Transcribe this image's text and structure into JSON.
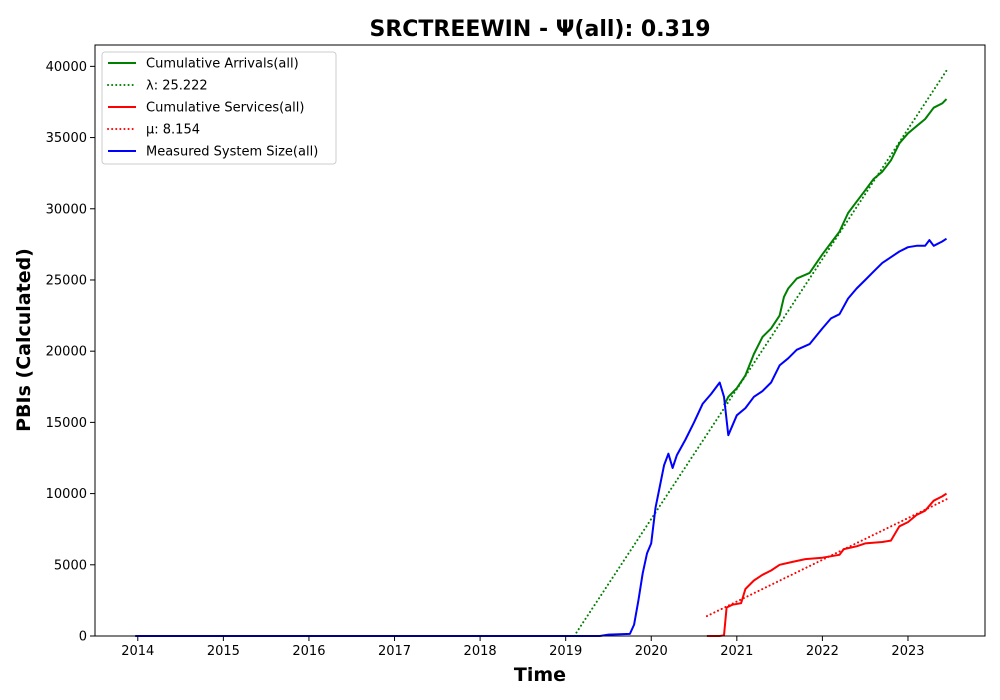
{
  "chart_data": {
    "type": "line",
    "title": "SRCTREEWIN -  Ψ(all): 0.319",
    "xlabel": "Time",
    "ylabel": "PBIs (Calculated)",
    "xlim": [
      2013.5,
      2023.9
    ],
    "ylim": [
      0,
      41500
    ],
    "x_ticks": [
      "2014",
      "2015",
      "2016",
      "2017",
      "2018",
      "2019",
      "2020",
      "2021",
      "2022",
      "2023"
    ],
    "y_ticks": [
      "0",
      "5000",
      "10000",
      "15000",
      "20000",
      "25000",
      "30000",
      "35000",
      "40000"
    ],
    "grid": false,
    "legend_position": "top-left",
    "series": [
      {
        "name": "Cumulative Arrivals(all)",
        "color": "#008000",
        "style": "solid",
        "points": [
          [
            2020.85,
            16200
          ],
          [
            2020.9,
            16800
          ],
          [
            2021.0,
            17400
          ],
          [
            2021.1,
            18300
          ],
          [
            2021.2,
            19800
          ],
          [
            2021.3,
            21000
          ],
          [
            2021.4,
            21600
          ],
          [
            2021.5,
            22500
          ],
          [
            2021.55,
            23800
          ],
          [
            2021.6,
            24400
          ],
          [
            2021.7,
            25100
          ],
          [
            2021.85,
            25500
          ],
          [
            2022.0,
            26800
          ],
          [
            2022.1,
            27600
          ],
          [
            2022.2,
            28400
          ],
          [
            2022.3,
            29700
          ],
          [
            2022.4,
            30500
          ],
          [
            2022.5,
            31300
          ],
          [
            2022.6,
            32100
          ],
          [
            2022.7,
            32600
          ],
          [
            2022.8,
            33400
          ],
          [
            2022.9,
            34600
          ],
          [
            2023.0,
            35300
          ],
          [
            2023.1,
            35800
          ],
          [
            2023.2,
            36300
          ],
          [
            2023.3,
            37100
          ],
          [
            2023.4,
            37400
          ],
          [
            2023.45,
            37700
          ]
        ]
      },
      {
        "name": "λ: 25.222",
        "color": "#008000",
        "style": "dotted",
        "points": [
          [
            2019.1,
            0
          ],
          [
            2023.45,
            39700
          ]
        ]
      },
      {
        "name": "Cumulative Services(all)",
        "color": "#ff0000",
        "style": "solid",
        "points": [
          [
            2020.65,
            0
          ],
          [
            2020.8,
            0
          ],
          [
            2020.85,
            50
          ],
          [
            2020.88,
            2000
          ],
          [
            2020.95,
            2200
          ],
          [
            2021.05,
            2300
          ],
          [
            2021.1,
            3300
          ],
          [
            2021.2,
            3900
          ],
          [
            2021.3,
            4300
          ],
          [
            2021.4,
            4600
          ],
          [
            2021.5,
            5000
          ],
          [
            2021.65,
            5200
          ],
          [
            2021.8,
            5400
          ],
          [
            2022.0,
            5500
          ],
          [
            2022.2,
            5700
          ],
          [
            2022.25,
            6100
          ],
          [
            2022.4,
            6300
          ],
          [
            2022.5,
            6500
          ],
          [
            2022.7,
            6600
          ],
          [
            2022.8,
            6700
          ],
          [
            2022.9,
            7700
          ],
          [
            2023.0,
            8000
          ],
          [
            2023.1,
            8500
          ],
          [
            2023.2,
            8800
          ],
          [
            2023.3,
            9500
          ],
          [
            2023.4,
            9800
          ],
          [
            2023.45,
            10000
          ]
        ]
      },
      {
        "name": "μ: 8.154",
        "color": "#ff0000",
        "style": "dotted",
        "points": [
          [
            2020.65,
            1400
          ],
          [
            2023.45,
            9600
          ]
        ]
      },
      {
        "name": "Measured System Size(all)",
        "color": "#0000ff",
        "style": "solid",
        "points": [
          [
            2013.97,
            0
          ],
          [
            2019.4,
            0
          ],
          [
            2019.5,
            100
          ],
          [
            2019.75,
            150
          ],
          [
            2019.8,
            800
          ],
          [
            2019.85,
            2500
          ],
          [
            2019.9,
            4400
          ],
          [
            2019.95,
            5800
          ],
          [
            2020.0,
            6500
          ],
          [
            2020.05,
            9000
          ],
          [
            2020.1,
            10500
          ],
          [
            2020.15,
            12000
          ],
          [
            2020.2,
            12800
          ],
          [
            2020.25,
            11800
          ],
          [
            2020.3,
            12700
          ],
          [
            2020.4,
            13800
          ],
          [
            2020.5,
            15000
          ],
          [
            2020.6,
            16300
          ],
          [
            2020.7,
            17000
          ],
          [
            2020.8,
            17800
          ],
          [
            2020.85,
            16800
          ],
          [
            2020.9,
            14100
          ],
          [
            2021.0,
            15500
          ],
          [
            2021.1,
            16000
          ],
          [
            2021.2,
            16800
          ],
          [
            2021.3,
            17200
          ],
          [
            2021.4,
            17800
          ],
          [
            2021.5,
            19000
          ],
          [
            2021.6,
            19500
          ],
          [
            2021.7,
            20100
          ],
          [
            2021.85,
            20500
          ],
          [
            2022.0,
            21600
          ],
          [
            2022.1,
            22300
          ],
          [
            2022.2,
            22600
          ],
          [
            2022.3,
            23700
          ],
          [
            2022.4,
            24400
          ],
          [
            2022.5,
            25000
          ],
          [
            2022.6,
            25600
          ],
          [
            2022.7,
            26200
          ],
          [
            2022.8,
            26600
          ],
          [
            2022.9,
            27000
          ],
          [
            2023.0,
            27300
          ],
          [
            2023.1,
            27400
          ],
          [
            2023.2,
            27400
          ],
          [
            2023.25,
            27800
          ],
          [
            2023.3,
            27400
          ],
          [
            2023.4,
            27700
          ],
          [
            2023.45,
            27900
          ]
        ]
      }
    ]
  }
}
